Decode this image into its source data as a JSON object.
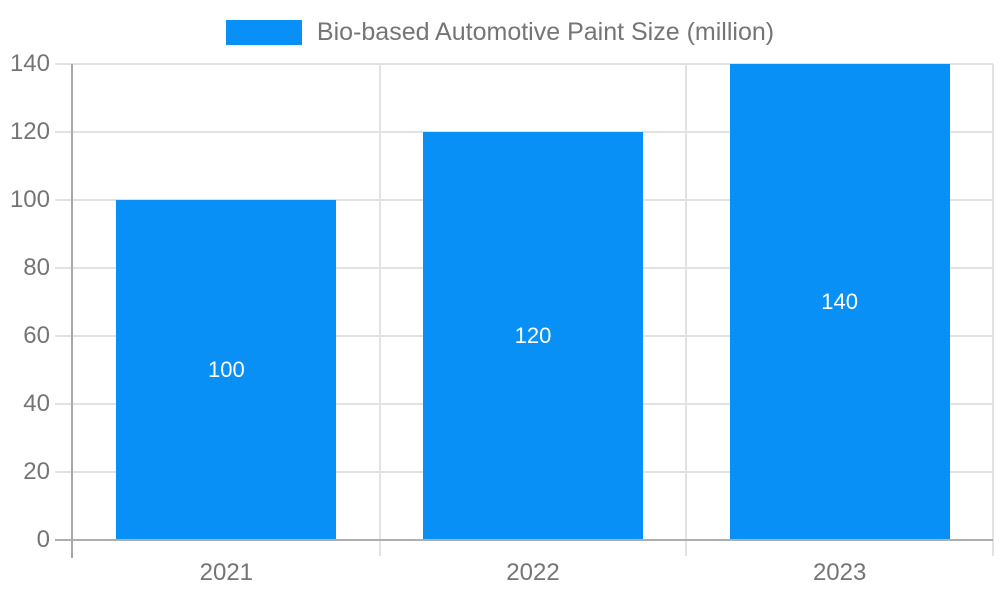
{
  "legend": {
    "label": "Bio-based Automotive Paint Size (million)",
    "swatch_color": "#0990F7"
  },
  "chart_data": {
    "type": "bar",
    "title": "Bio-based Automotive Paint Size (million)",
    "categories": [
      "2021",
      "2022",
      "2023"
    ],
    "values": [
      100,
      120,
      140
    ],
    "series": [
      {
        "name": "Bio-based Automotive Paint Size (million)",
        "values": [
          100,
          120,
          140
        ]
      }
    ],
    "xlabel": "",
    "ylabel": "",
    "ylim": [
      0,
      140
    ],
    "yticks": [
      0,
      20,
      40,
      60,
      80,
      100,
      120,
      140
    ],
    "grid": true,
    "legend_position": "top-center",
    "bar_color": "#0990F7",
    "data_label_color": "#ffffff",
    "axis_text_color": "#757575",
    "gridline_color": "#e2e2e2",
    "axis_line_color": "#aaaaaa"
  }
}
